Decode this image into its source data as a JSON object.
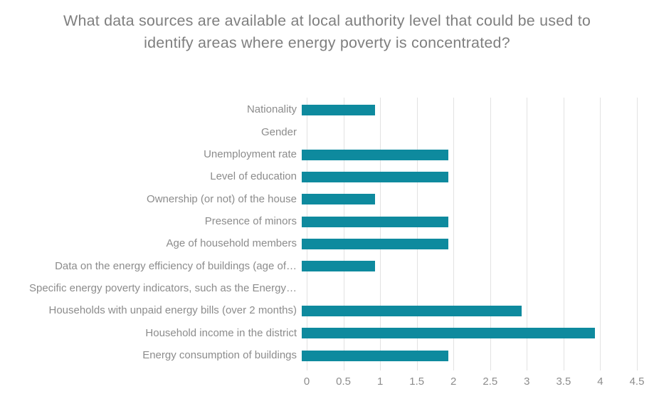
{
  "title": "What data sources are available at local authority level that could be used to identify areas where energy poverty is concentrated?",
  "colors": {
    "bar": "#0e8a9e",
    "gridline": "#e2e2e2",
    "title_text": "#7f7f7f",
    "label_text": "#8c8c8c",
    "background": "#ffffff"
  },
  "chart_data": {
    "type": "bar",
    "orientation": "horizontal",
    "title": "What data sources are available at local authority level that could be used to identify areas where energy poverty is concentrated?",
    "categories": [
      "Nationality",
      "Gender",
      "Unemployment rate",
      "Level of education",
      "Ownership (or not) of the house",
      "Presence of minors",
      "Age of household members",
      "Data on the energy efficiency of buildings (age of…",
      "Specific energy poverty indicators, such as the Energy…",
      "Households with unpaid energy bills (over 2 months)",
      "Household income in the district",
      "Energy consumption of buildings"
    ],
    "values": [
      1,
      0,
      2,
      2,
      1,
      2,
      2,
      1,
      0,
      3,
      4,
      2
    ],
    "xlabel": "",
    "ylabel": "",
    "xlim": [
      0,
      4.5
    ],
    "x_ticks": [
      0,
      0.5,
      1,
      1.5,
      2,
      2.5,
      3,
      3.5,
      4,
      4.5
    ],
    "x_tick_labels": [
      "0",
      "0.5",
      "1",
      "1.5",
      "2",
      "2.5",
      "3",
      "3.5",
      "4",
      "4.5"
    ],
    "grid": "vertical",
    "legend": "none"
  }
}
